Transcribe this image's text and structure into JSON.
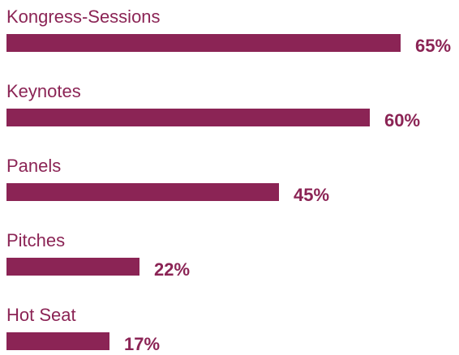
{
  "colors": {
    "bar": "#8b2455",
    "category_text": "#8b2455",
    "value_text": "#8b2455"
  },
  "chart_data": {
    "type": "bar",
    "orientation": "horizontal",
    "categories": [
      "Kongress-Sessions",
      "Keynotes",
      "Panels",
      "Pitches",
      "Hot Seat"
    ],
    "values": [
      65,
      60,
      45,
      22,
      17
    ],
    "value_labels": [
      "65%",
      "60%",
      "45%",
      "22%",
      "17%"
    ],
    "unit": "%",
    "xlim": [
      0,
      100
    ],
    "grid": false,
    "legend": "none"
  }
}
